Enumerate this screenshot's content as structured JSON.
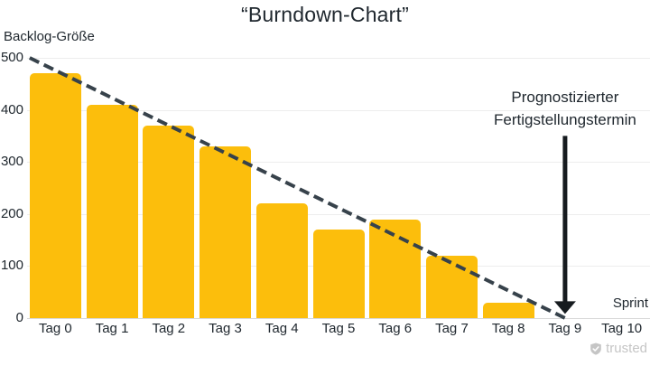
{
  "title": "“Burndown-Chart”",
  "y_axis_title": "Backlog-Größe",
  "x_axis_title": "Sprint",
  "annotation": {
    "line1": "Prognostizierter",
    "line2": "Fertigstellungstermin"
  },
  "watermark": {
    "label": "trusted",
    "icon": "shield-check-icon"
  },
  "colors": {
    "bar": "#FCBE0C",
    "trend": "#37424B",
    "arrow": "#161B1F",
    "grid": "#EDEDED",
    "baseline": "#D9D9D9",
    "text": "#20282F",
    "watermark": "#C5C5C5",
    "background": "#FFFFFF"
  },
  "chart_data": {
    "type": "bar",
    "title": "“Burndown-Chart”",
    "xlabel": "Sprint",
    "ylabel": "Backlog-Größe",
    "categories": [
      "Tag 0",
      "Tag 1",
      "Tag 2",
      "Tag 3",
      "Tag 4",
      "Tag 5",
      "Tag 6",
      "Tag 7",
      "Tag 8",
      "Tag 9",
      "Tag 10"
    ],
    "values": [
      470,
      410,
      370,
      330,
      220,
      170,
      190,
      120,
      30,
      null,
      null
    ],
    "ylim": [
      0,
      500
    ],
    "y_ticks": [
      500,
      400,
      300,
      200,
      100,
      0
    ],
    "grid": "horizontal",
    "legend": "none",
    "bar_color": "#FCBE0C",
    "trend_line": {
      "style": "dashed",
      "color": "#37424B",
      "from": {
        "category_index": 0,
        "value": 500,
        "anchor": "bar-left"
      },
      "to": {
        "category_index": 9,
        "value": 0,
        "anchor": "center"
      }
    },
    "annotation_arrow": {
      "category_index": 9,
      "from_value": 350,
      "to_value": 8
    }
  }
}
